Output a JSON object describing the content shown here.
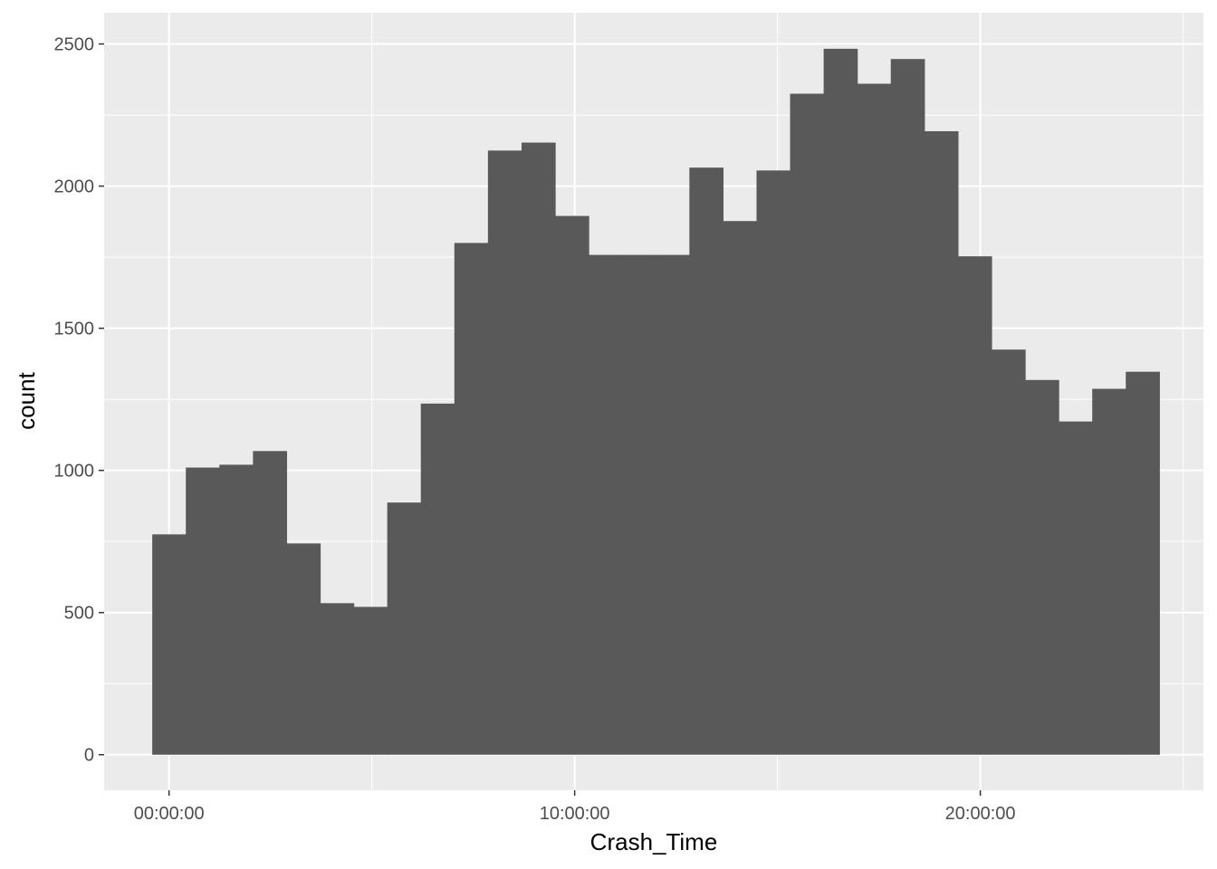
{
  "chart_data": {
    "type": "bar",
    "title": "",
    "xlabel": "Crash_Time",
    "ylabel": "count",
    "x_axis_unit": "hours",
    "xlim": [
      -1.6,
      25.5
    ],
    "ylim": [
      -125,
      2610
    ],
    "x_ticks": [
      {
        "value": 0,
        "label": "00:00:00"
      },
      {
        "value": 10,
        "label": "10:00:00"
      },
      {
        "value": 20,
        "label": "20:00:00"
      }
    ],
    "y_ticks": [
      {
        "value": 0,
        "label": "0"
      },
      {
        "value": 500,
        "label": "500"
      },
      {
        "value": 1000,
        "label": "1000"
      },
      {
        "value": 1500,
        "label": "1500"
      },
      {
        "value": 2000,
        "label": "2000"
      },
      {
        "value": 2500,
        "label": "2500"
      }
    ],
    "bin_width_hours": 0.8276,
    "bins_start": [
      -0.414,
      0.414,
      1.241,
      2.069,
      2.897,
      3.724,
      4.552,
      5.379,
      6.207,
      7.034,
      7.862,
      8.69,
      9.517,
      10.345,
      11.172,
      12.0,
      12.828,
      13.655,
      14.483,
      15.31,
      16.138,
      16.966,
      17.793,
      18.621,
      19.448,
      20.276,
      21.103,
      21.931,
      22.759,
      23.586
    ],
    "values": [
      775,
      1010,
      1020,
      1068,
      743,
      533,
      520,
      887,
      1235,
      1800,
      2125,
      2153,
      1895,
      1758,
      1758,
      1758,
      2065,
      1877,
      2055,
      2325,
      2483,
      2360,
      2447,
      2193,
      1753,
      1425,
      1318,
      1172,
      1287,
      1347
    ],
    "grid": true,
    "legend": "none",
    "colors": {
      "panel_background": "#ebebeb",
      "grid_major": "#ffffff",
      "bar_fill": "#595959",
      "tick_text": "#4d4d4d",
      "tick_mark": "#333333",
      "axis_title": "#000000"
    }
  }
}
